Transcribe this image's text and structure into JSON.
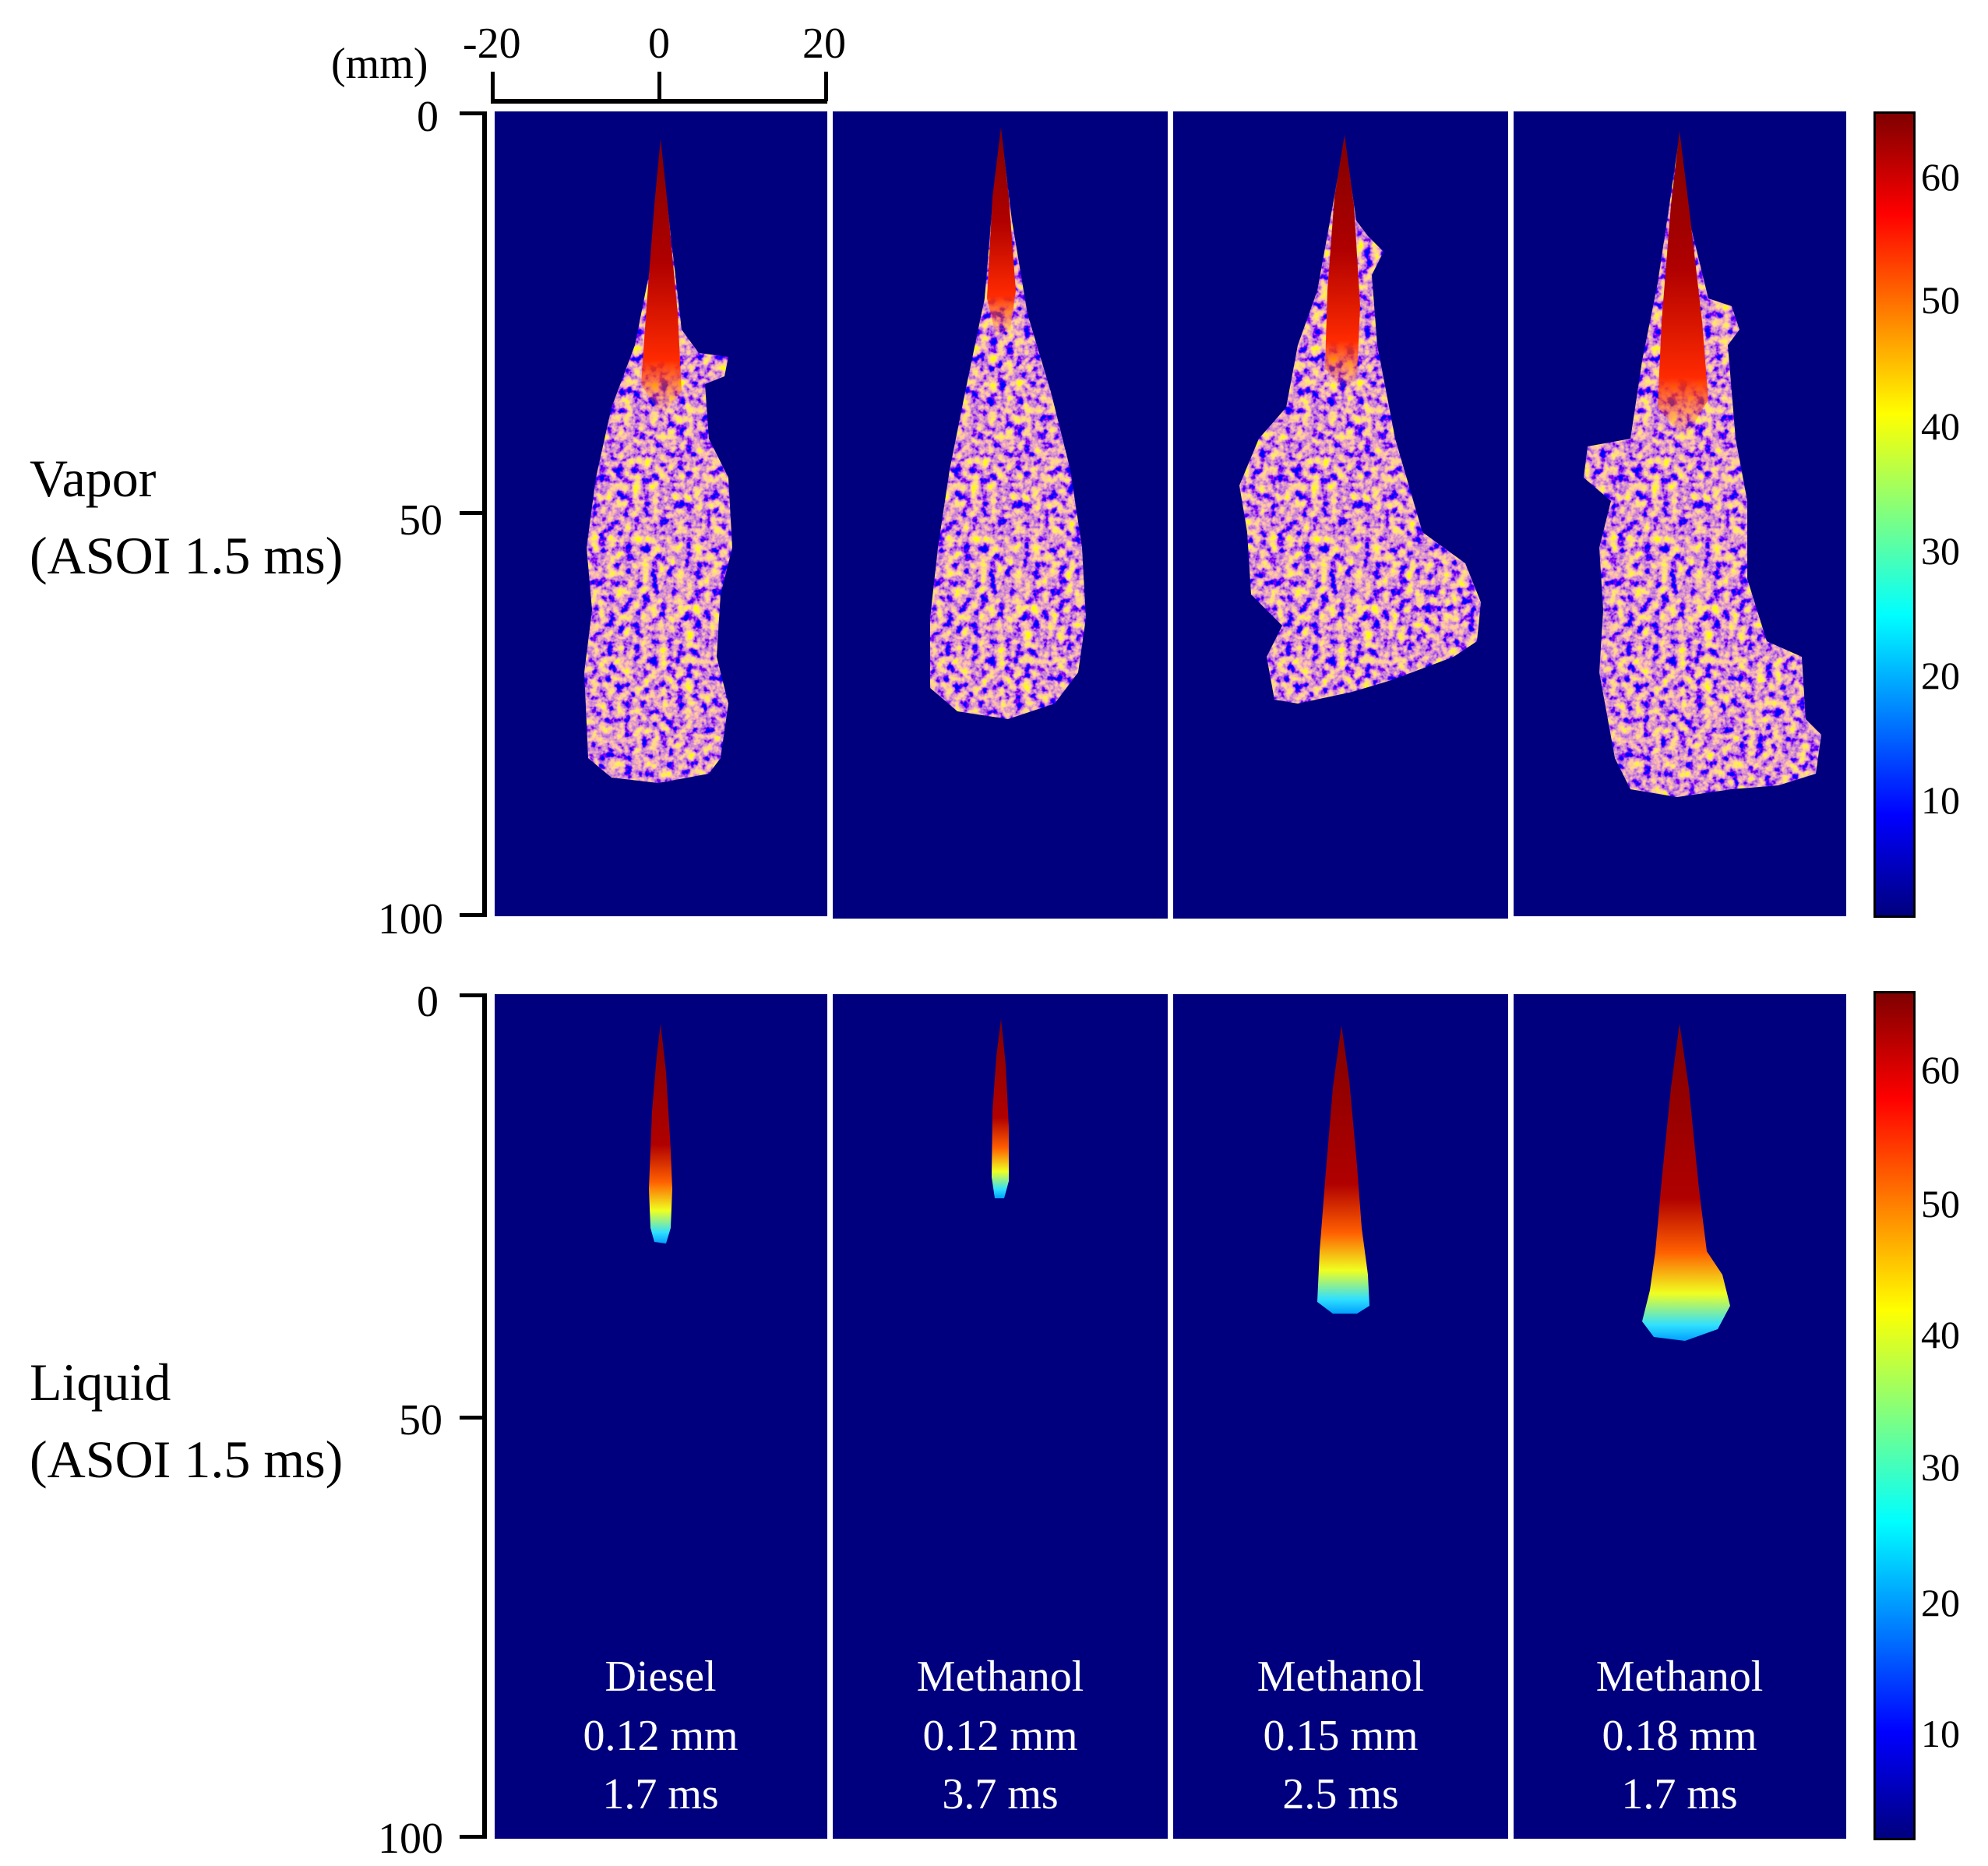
{
  "axis": {
    "unit_label": "(mm)",
    "x_ticks": [
      "-20",
      "0",
      "20"
    ],
    "y_ticks": [
      "0",
      "50",
      "100"
    ]
  },
  "rows": [
    {
      "label_line1": "Vapor",
      "label_line2": "(ASOI 1.5 ms)"
    },
    {
      "label_line1": "Liquid",
      "label_line2": "(ASOI 1.5 ms)"
    }
  ],
  "cases": [
    {
      "fuel": "Diesel",
      "nozzle": "0.12 mm",
      "duration": "1.7 ms"
    },
    {
      "fuel": "Methanol",
      "nozzle": "0.12 mm",
      "duration": "3.7 ms"
    },
    {
      "fuel": "Methanol",
      "nozzle": "0.15 mm",
      "duration": "2.5 ms"
    },
    {
      "fuel": "Methanol",
      "nozzle": "0.18 mm",
      "duration": "1.7 ms"
    }
  ],
  "colorbar": {
    "ticks": [
      "60",
      "50",
      "40",
      "30",
      "20",
      "10"
    ]
  },
  "colors": {
    "background": "#00007e",
    "colormap": "jet"
  }
}
